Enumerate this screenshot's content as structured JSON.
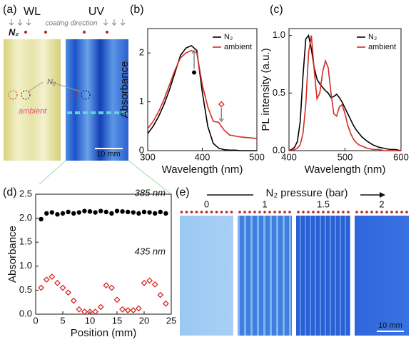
{
  "chart_data": [
    {
      "type": "line",
      "panel_label": "(b)",
      "x_label": "Wavelength (nm)",
      "y_label": "Absorbance",
      "x": [
        300,
        310,
        320,
        330,
        340,
        350,
        360,
        370,
        380,
        390,
        400,
        410,
        420,
        430,
        440,
        450,
        460,
        470,
        480,
        490,
        500
      ],
      "series": [
        {
          "name": "N₂",
          "color": "#000000",
          "values": [
            0.35,
            0.5,
            0.7,
            0.95,
            1.25,
            1.6,
            1.95,
            2.1,
            2.15,
            2.05,
            1.2,
            0.5,
            0.15,
            0.05,
            0.02,
            0.01,
            0.01,
            0,
            0,
            0,
            0
          ]
        },
        {
          "name": "ambient",
          "color": "#d42a22",
          "values": [
            0.45,
            0.6,
            0.8,
            1.05,
            1.35,
            1.65,
            1.9,
            2.0,
            2.05,
            2.0,
            1.35,
            0.9,
            0.6,
            0.58,
            0.42,
            0.32,
            0.3,
            0.28,
            0.27,
            0.26,
            0.25
          ]
        }
      ],
      "xlim": [
        300,
        500
      ],
      "xticks": [
        300,
        400,
        500
      ],
      "ylim": [
        0,
        2.5
      ],
      "yticks": [
        0,
        1,
        2
      ],
      "legend": "upper right"
    },
    {
      "type": "line",
      "panel_label": "(c)",
      "x_label": "Wavelength (nm)",
      "y_label": "PL intensity (a.u.)",
      "x": [
        400,
        405,
        410,
        415,
        420,
        425,
        430,
        435,
        440,
        445,
        450,
        455,
        460,
        465,
        470,
        475,
        480,
        485,
        490,
        495,
        500,
        505,
        510,
        515,
        520,
        525,
        530,
        535,
        540,
        550,
        560,
        570,
        580,
        590,
        600
      ],
      "series": [
        {
          "name": "N₂",
          "color": "#000000",
          "values": [
            0,
            0.01,
            0.03,
            0.08,
            0.25,
            0.65,
            0.97,
            1.0,
            0.88,
            0.72,
            0.62,
            0.58,
            0.55,
            0.52,
            0.5,
            0.46,
            0.47,
            0.49,
            0.46,
            0.42,
            0.37,
            0.32,
            0.27,
            0.22,
            0.18,
            0.15,
            0.12,
            0.1,
            0.08,
            0.05,
            0.03,
            0.02,
            0.01,
            0.01,
            0
          ]
        },
        {
          "name": "ambient",
          "color": "#d42a22",
          "values": [
            0,
            0,
            0.01,
            0.02,
            0.05,
            0.15,
            0.4,
            0.85,
            1.0,
            0.7,
            0.45,
            0.5,
            0.68,
            0.78,
            0.72,
            0.5,
            0.32,
            0.3,
            0.38,
            0.4,
            0.32,
            0.22,
            0.15,
            0.1,
            0.07,
            0.05,
            0.04,
            0.03,
            0.02,
            0.01,
            0.01,
            0,
            0,
            0,
            0
          ]
        }
      ],
      "xlim": [
        400,
        600
      ],
      "xticks": [
        400,
        500,
        600
      ],
      "ylim": [
        0,
        1.06
      ],
      "yticks": [
        {
          "value": 0,
          "label": "0.0"
        },
        {
          "value": 0.5,
          "label": "0.5"
        },
        {
          "value": 1,
          "label": "1.0"
        }
      ],
      "legend": "upper right"
    },
    {
      "type": "scatter",
      "panel_label": "(d)",
      "x_label": "Position (mm)",
      "y_label": "Absorbance",
      "x": [
        1,
        2,
        3,
        4,
        5,
        6,
        7,
        8,
        9,
        10,
        11,
        12,
        13,
        14,
        15,
        16,
        17,
        18,
        19,
        20,
        21,
        22,
        23,
        24
      ],
      "series": [
        {
          "name": "385 nm",
          "color": "#000000",
          "marker": "circle",
          "values": [
            1.98,
            2.1,
            2.12,
            2.08,
            2.1,
            2.13,
            2.1,
            2.12,
            2.15,
            2.14,
            2.12,
            2.15,
            2.13,
            2.1,
            2.15,
            2.14,
            2.13,
            2.12,
            2.1,
            2.13,
            2.12,
            2.1,
            2.13,
            2.1
          ]
        },
        {
          "name": "435 nm",
          "color": "#d42a22",
          "marker": "diamond",
          "values": [
            0.55,
            0.72,
            0.78,
            0.65,
            0.55,
            0.45,
            0.28,
            0.1,
            0.05,
            0.05,
            0.05,
            0.15,
            0.6,
            0.55,
            0.3,
            0.1,
            0.08,
            0.08,
            0.12,
            0.65,
            0.7,
            0.62,
            0.4,
            0.22
          ]
        }
      ],
      "xlim": [
        0,
        25
      ],
      "xticks": [
        0,
        5,
        10,
        15,
        20,
        25
      ],
      "ylim": [
        0,
        2.5
      ],
      "yticks": [
        {
          "value": 0,
          "label": "0.0"
        },
        {
          "value": 0.5,
          "label": "0.5"
        },
        {
          "value": 1,
          "label": "1.0"
        },
        {
          "value": 1.5,
          "label": "1.5"
        },
        {
          "value": 2,
          "label": "2.0"
        },
        {
          "value": 2.5,
          "label": "2.5"
        }
      ]
    }
  ],
  "panel_a": {
    "label": "(a)",
    "wl": "WL",
    "uv": "UV",
    "n2": "N₂",
    "coating_direction": "coating direction",
    "n2_pointer": "N₂",
    "ambient": "ambient",
    "scale": "10 mm"
  },
  "panel_e": {
    "label": "(e)",
    "axis_label": "N₂ pressure (bar)",
    "pressures": [
      0,
      1,
      1.5,
      2
    ],
    "scale": "10 mm"
  }
}
